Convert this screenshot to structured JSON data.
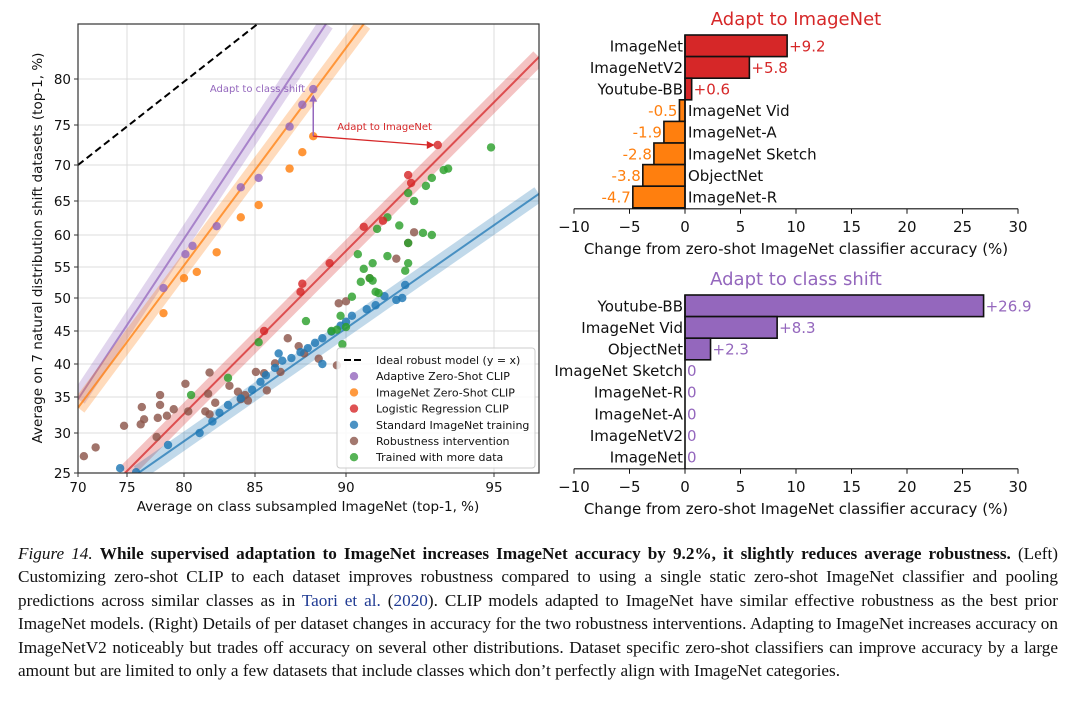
{
  "chart_data": [
    {
      "type": "scatter",
      "xlabel": "Average on class subsampled ImageNet (top-1, %)",
      "ylabel": "Average on 7 natural distribution shift datasets (top-1, %)",
      "x_scale": "logit",
      "y_scale": "logit",
      "xlim": [
        70,
        97.5
      ],
      "ylim": [
        25,
        85
      ],
      "x_ticks": [
        70,
        75,
        80,
        85,
        90,
        95
      ],
      "y_ticks": [
        25,
        30,
        35,
        40,
        45,
        50,
        55,
        60,
        65,
        70,
        75,
        80
      ],
      "grid": true,
      "legend_position": "lower-right",
      "legend": [
        {
          "label": "Ideal robust model (y = x)",
          "style": "dashed-line",
          "color": "#000000"
        },
        {
          "label": "Adaptive Zero-Shot CLIP",
          "style": "marker",
          "color": "#9467bd"
        },
        {
          "label": "ImageNet Zero-Shot CLIP",
          "style": "marker",
          "color": "#ff7f0e"
        },
        {
          "label": "Logistic Regression CLIP",
          "style": "marker",
          "color": "#d62728"
        },
        {
          "label": "Standard ImageNet training",
          "style": "marker",
          "color": "#1f77b4"
        },
        {
          "label": "Robustness intervention",
          "style": "marker",
          "color": "#8c564b"
        },
        {
          "label": "Trained with more data",
          "style": "marker",
          "color": "#2ca02c"
        }
      ],
      "ideal_line": {
        "x": [
          70,
          85.6
        ],
        "y": [
          70,
          85.6
        ]
      },
      "series": [
        {
          "name": "Adaptive Zero-Shot CLIP",
          "color": "#9467bd",
          "fit": {
            "x": [
              70,
              88.9
            ],
            "y": [
              34.7,
              85
            ]
          },
          "points": [
            [
              78.2,
              51.6
            ],
            [
              80.1,
              57.0
            ],
            [
              80.6,
              58.3
            ],
            [
              82.3,
              61.3
            ],
            [
              84.0,
              66.9
            ],
            [
              85.2,
              68.2
            ],
            [
              86.9,
              74.8
            ],
            [
              87.6,
              77.2
            ],
            [
              88.2,
              78.9
            ]
          ]
        },
        {
          "name": "ImageNet Zero-Shot CLIP",
          "color": "#ff7f0e",
          "fit": {
            "x": [
              70,
              90.6
            ],
            "y": [
              33.5,
              85
            ]
          },
          "points": [
            [
              78.2,
              47.7
            ],
            [
              80.0,
              53.2
            ],
            [
              80.9,
              54.2
            ],
            [
              82.3,
              57.3
            ],
            [
              84.0,
              62.6
            ],
            [
              85.2,
              64.4
            ],
            [
              86.9,
              69.5
            ],
            [
              87.6,
              71.6
            ],
            [
              88.2,
              73.6
            ]
          ]
        },
        {
          "name": "Logistic Regression CLIP",
          "color": "#d62728",
          "fit": {
            "x": [
              74.8,
              97.5
            ],
            "y": [
              25,
              82
            ]
          },
          "points": [
            [
              93.1,
              72.5
            ],
            [
              92.1,
              68.6
            ],
            [
              92.2,
              67.5
            ],
            [
              91.25,
              62.1
            ],
            [
              90.6,
              61.2
            ],
            [
              89.1,
              55.6
            ],
            [
              87.6,
              52.3
            ],
            [
              87.5,
              51.0
            ],
            [
              85.5,
              45.0
            ]
          ]
        },
        {
          "name": "Standard ImageNet training",
          "color": "#1f77b4",
          "fit": {
            "x": [
              76.0,
              97.5
            ],
            "y": [
              25,
              66
            ]
          },
          "points": [
            [
              92.0,
              52.1
            ],
            [
              91.9,
              50.0
            ],
            [
              91.7,
              49.7
            ],
            [
              91.3,
              50.3
            ],
            [
              91.0,
              48.9
            ],
            [
              90.7,
              48.3
            ],
            [
              90.2,
              47.3
            ],
            [
              90.0,
              46.4
            ],
            [
              89.7,
              45.8
            ],
            [
              89.2,
              44.9
            ],
            [
              88.7,
              43.9
            ],
            [
              88.3,
              43.2
            ],
            [
              87.9,
              42.4
            ],
            [
              87.5,
              41.8
            ],
            [
              87.0,
              40.9
            ],
            [
              86.5,
              40.5
            ],
            [
              86.1,
              39.4
            ],
            [
              85.6,
              38.3
            ],
            [
              85.3,
              37.3
            ],
            [
              84.8,
              36.1
            ],
            [
              84.0,
              34.8
            ],
            [
              83.1,
              33.9
            ],
            [
              82.5,
              32.8
            ],
            [
              82.0,
              31.6
            ],
            [
              81.1,
              30.0
            ],
            [
              78.6,
              28.5
            ],
            [
              75.8,
              25.1
            ],
            [
              74.3,
              25.6
            ],
            [
              88.7,
              40.0
            ],
            [
              86.3,
              41.6
            ]
          ]
        },
        {
          "name": "Robustness intervention",
          "color": "#8c564b",
          "points": [
            [
              70.6,
              27.1
            ],
            [
              71.8,
              28.2
            ],
            [
              74.7,
              31.0
            ],
            [
              76.3,
              33.6
            ],
            [
              76.5,
              31.9
            ],
            [
              76.2,
              31.2
            ],
            [
              77.7,
              32.1
            ],
            [
              77.9,
              35.3
            ],
            [
              77.9,
              33.9
            ],
            [
              78.5,
              32.4
            ],
            [
              79.1,
              33.3
            ],
            [
              77.6,
              29.5
            ],
            [
              80.1,
              37.0
            ],
            [
              80.3,
              33.0
            ],
            [
              81.8,
              38.7
            ],
            [
              81.7,
              35.5
            ],
            [
              81.5,
              33.0
            ],
            [
              82.2,
              34.2
            ],
            [
              81.8,
              32.6
            ],
            [
              83.2,
              36.7
            ],
            [
              83.8,
              35.8
            ],
            [
              84.0,
              34.7
            ],
            [
              84.3,
              35.3
            ],
            [
              84.5,
              34.5
            ],
            [
              85.05,
              38.8
            ],
            [
              85.5,
              38.6
            ],
            [
              85.65,
              36.0
            ],
            [
              86.1,
              40.1
            ],
            [
              86.4,
              38.8
            ],
            [
              86.8,
              43.9
            ],
            [
              87.4,
              42.7
            ],
            [
              87.7,
              41.6
            ],
            [
              88.5,
              40.8
            ],
            [
              89.5,
              39.8
            ],
            [
              89.6,
              49.2
            ],
            [
              91.7,
              56.3
            ],
            [
              92.1,
              58.75
            ],
            [
              90.8,
              53.2
            ],
            [
              90.0,
              49.5
            ],
            [
              92.3,
              60.4
            ]
          ]
        },
        {
          "name": "Trained with more data",
          "color": "#2ca02c",
          "points": [
            [
              94.9,
              72.2
            ],
            [
              93.45,
              69.5
            ],
            [
              93.3,
              69.3
            ],
            [
              92.9,
              68.2
            ],
            [
              92.7,
              67.1
            ],
            [
              92.1,
              66.1
            ],
            [
              92.3,
              65.0
            ],
            [
              91.4,
              62.6
            ],
            [
              91.8,
              61.4
            ],
            [
              91.05,
              60.9
            ],
            [
              92.6,
              60.3
            ],
            [
              92.9,
              60.0
            ],
            [
              92.1,
              58.75
            ],
            [
              90.4,
              57.0
            ],
            [
              91.4,
              56.7
            ],
            [
              90.9,
              55.6
            ],
            [
              92.1,
              55.6
            ],
            [
              92.0,
              54.4
            ],
            [
              90.6,
              54.7
            ],
            [
              90.8,
              53.2
            ],
            [
              90.5,
              52.6
            ],
            [
              90.9,
              52.8
            ],
            [
              91.0,
              51.0
            ],
            [
              90.2,
              50.2
            ],
            [
              87.8,
              46.5
            ],
            [
              91.1,
              50.8
            ],
            [
              89.7,
              47.3
            ],
            [
              90.0,
              45.6
            ],
            [
              89.2,
              45.0
            ],
            [
              89.5,
              45.2
            ],
            [
              85.2,
              43.3
            ],
            [
              80.5,
              35.3
            ],
            [
              83.1,
              37.9
            ],
            [
              89.8,
              43.0
            ]
          ]
        }
      ],
      "annotations": [
        {
          "text": "Adapt to class shift",
          "color": "#9467bd",
          "from": [
            88.2,
            73.6
          ],
          "to": [
            88.2,
            78.3
          ]
        },
        {
          "text": "Adapt to ImageNet",
          "color": "#d62728",
          "from": [
            88.2,
            73.6
          ],
          "to": [
            93.0,
            72.5
          ]
        }
      ]
    },
    {
      "type": "bar",
      "orientation": "horizontal",
      "title": "Adapt to ImageNet",
      "title_color": "#d62728",
      "xlabel": "Change from zero-shot ImageNet classifier accuracy (%)",
      "xlim": [
        -10,
        30
      ],
      "x_ticks": [
        -10,
        -5,
        0,
        5,
        10,
        15,
        20,
        25,
        30
      ],
      "x_tick_labels": [
        "−10",
        "−5",
        "0",
        "5",
        "10",
        "15",
        "20",
        "25",
        "30"
      ],
      "positive_color": "#d62728",
      "negative_color": "#ff7f0e",
      "categories": [
        "ImageNet",
        "ImageNetV2",
        "Youtube-BB",
        "ImageNet Vid",
        "ImageNet-A",
        "ImageNet Sketch",
        "ObjectNet",
        "ImageNet-R"
      ],
      "values": [
        9.2,
        5.8,
        0.6,
        -0.5,
        -1.9,
        -2.8,
        -3.8,
        -4.7
      ],
      "value_labels": [
        "+9.2",
        "+5.8",
        "+0.6",
        "-0.5",
        "-1.9",
        "-2.8",
        "-3.8",
        "-4.7"
      ]
    },
    {
      "type": "bar",
      "orientation": "horizontal",
      "title": "Adapt to class shift",
      "title_color": "#9467bd",
      "xlabel": "Change from zero-shot ImageNet classifier accuracy (%)",
      "xlim": [
        -10,
        30
      ],
      "x_ticks": [
        -10,
        -5,
        0,
        5,
        10,
        15,
        20,
        25,
        30
      ],
      "x_tick_labels": [
        "−10",
        "−5",
        "0",
        "5",
        "10",
        "15",
        "20",
        "25",
        "30"
      ],
      "positive_color": "#9467bd",
      "negative_color": "#9467bd",
      "categories": [
        "Youtube-BB",
        "ImageNet Vid",
        "ObjectNet",
        "ImageNet Sketch",
        "ImageNet-R",
        "ImageNet-A",
        "ImageNetV2",
        "ImageNet"
      ],
      "values": [
        26.9,
        8.3,
        2.3,
        0,
        0,
        0,
        0,
        0
      ],
      "value_labels": [
        "+26.9",
        "+8.3",
        "+2.3",
        "0",
        "0",
        "0",
        "0",
        "0"
      ]
    }
  ],
  "caption": {
    "figure_label": "Figure 14.",
    "bold_title": "While supervised adaptation to ImageNet increases ImageNet accuracy by 9.2%, it slightly reduces average robustness.",
    "body_part1": "(Left) Customizing zero-shot CLIP to each dataset improves robustness compared to using a single static zero-shot ImageNet classifier and pooling predictions across similar classes as in ",
    "citation_authors": "Taori et al.",
    "citation_open": " (",
    "citation_year": "2020",
    "citation_close": ").",
    "body_part2": " CLIP models adapted to ImageNet have similar effective robustness as the best prior ImageNet models. (Right) Details of per dataset changes in accuracy for the two robustness interventions. Adapting to ImageNet increases accuracy on ImageNetV2 noticeably but trades off accuracy on several other distributions. Dataset specific zero-shot classifiers can improve accuracy by a large amount but are limited to only a few datasets that include classes which don’t perfectly align with ImageNet categories."
  }
}
